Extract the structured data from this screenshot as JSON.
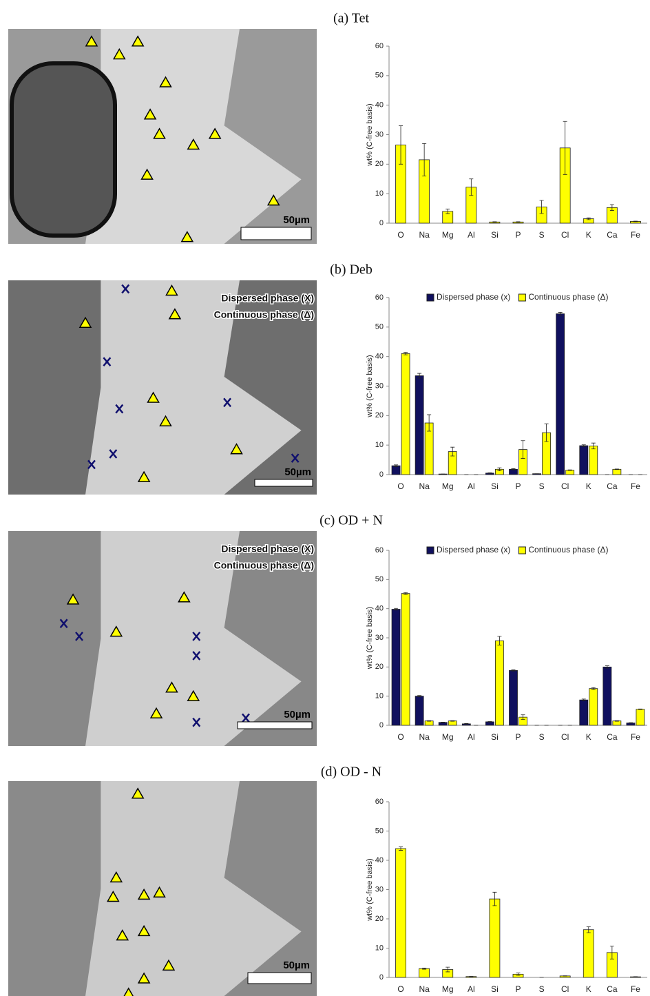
{
  "chart_data": [
    {
      "type": "bar",
      "title": "(a) Tet",
      "ylabel": "wt% (C-free basis)",
      "categories": [
        "O",
        "Na",
        "Mg",
        "Al",
        "Si",
        "P",
        "S",
        "Cl",
        "K",
        "Ca",
        "Fe"
      ],
      "values": [
        26.5,
        21.5,
        4,
        12.2,
        0.4,
        0.4,
        5.5,
        25.5,
        1.5,
        5.3,
        0.6
      ],
      "errors": [
        6.5,
        5.5,
        0.8,
        2.8,
        0.1,
        0.1,
        2.2,
        9,
        0.3,
        1,
        0.1
      ],
      "color": "#ffff00",
      "ylim": [
        0,
        60
      ],
      "yticks": [
        0,
        10,
        20,
        30,
        40,
        50,
        60
      ]
    },
    {
      "type": "bar",
      "title": "(b) Deb",
      "ylabel": "wt% (C-free basis)",
      "categories": [
        "O",
        "Na",
        "Mg",
        "Al",
        "Si",
        "P",
        "S",
        "Cl",
        "K",
        "Ca",
        "Fe"
      ],
      "series": [
        {
          "name": "Dispersed phase (x)",
          "color": "#10105e",
          "values": [
            3,
            33.5,
            0.2,
            0,
            0.5,
            1.8,
            0.3,
            54.5,
            9.8,
            0,
            0
          ],
          "errors": [
            0.3,
            0.8,
            0,
            0,
            0.1,
            0.2,
            0,
            0.5,
            0.3,
            0,
            0
          ]
        },
        {
          "name": "Continuous phase (Δ)",
          "color": "#ffff00",
          "values": [
            41,
            17.5,
            7.8,
            0,
            1.8,
            8.5,
            14.2,
            1.5,
            9.7,
            1.8,
            0
          ],
          "errors": [
            0.4,
            2.8,
            1.5,
            0,
            0.5,
            3,
            3,
            0.1,
            1,
            0.1,
            0
          ]
        }
      ],
      "legend": "top",
      "ylim": [
        0,
        60
      ],
      "yticks": [
        0,
        10,
        20,
        30,
        40,
        50,
        60
      ]
    },
    {
      "type": "bar",
      "title": "(c) OD + N",
      "ylabel": "wt% (C-free basis)",
      "categories": [
        "O",
        "Na",
        "Mg",
        "Al",
        "Si",
        "P",
        "S",
        "Cl",
        "K",
        "Ca",
        "Fe"
      ],
      "series": [
        {
          "name": "Dispersed phase (x)",
          "color": "#10105e",
          "values": [
            39.8,
            10,
            1,
            0.5,
            1.2,
            18.8,
            0,
            0,
            8.7,
            20,
            0.8
          ],
          "errors": [
            0.3,
            0.2,
            0.1,
            0.1,
            0.1,
            0.2,
            0,
            0,
            0.3,
            0.4,
            0.1
          ]
        },
        {
          "name": "Continuous phase (Δ)",
          "color": "#ffff00",
          "values": [
            45.2,
            1.5,
            1.5,
            0,
            29,
            2.8,
            0,
            0,
            12.6,
            1.5,
            5.5
          ],
          "errors": [
            0.3,
            0.1,
            0.1,
            0,
            1.5,
            0.8,
            0,
            0,
            0.3,
            0.1,
            0.1
          ]
        }
      ],
      "legend": "top",
      "ylim": [
        0,
        60
      ],
      "yticks": [
        0,
        10,
        20,
        30,
        40,
        50,
        60
      ]
    },
    {
      "type": "bar",
      "title": "(d) OD - N",
      "ylabel": "wt% (C-free basis)",
      "categories": [
        "O",
        "Na",
        "Mg",
        "Al",
        "Si",
        "P",
        "S",
        "Cl",
        "K",
        "Ca",
        "Fe"
      ],
      "values": [
        44,
        3,
        2.7,
        0.3,
        26.8,
        1.1,
        0,
        0.5,
        16.3,
        8.5,
        0.2
      ],
      "errors": [
        0.6,
        0.2,
        0.8,
        0.05,
        2.3,
        0.4,
        0,
        0.05,
        1,
        2.2,
        0.05
      ],
      "color": "#ffff00",
      "ylim": [
        0,
        60
      ],
      "yticks": [
        0,
        10,
        20,
        30,
        40,
        50,
        60
      ]
    }
  ],
  "micrographs": [
    {
      "scale_bar": "50µm"
    },
    {
      "scale_bar": "50µm",
      "legend": [
        "Dispersed phase (X)",
        "Continuous phase (Δ)"
      ]
    },
    {
      "scale_bar": "50µm",
      "legend": [
        "Dispersed phase (X)",
        "Continuous phase (Δ)"
      ]
    },
    {
      "scale_bar": "50µm"
    }
  ]
}
